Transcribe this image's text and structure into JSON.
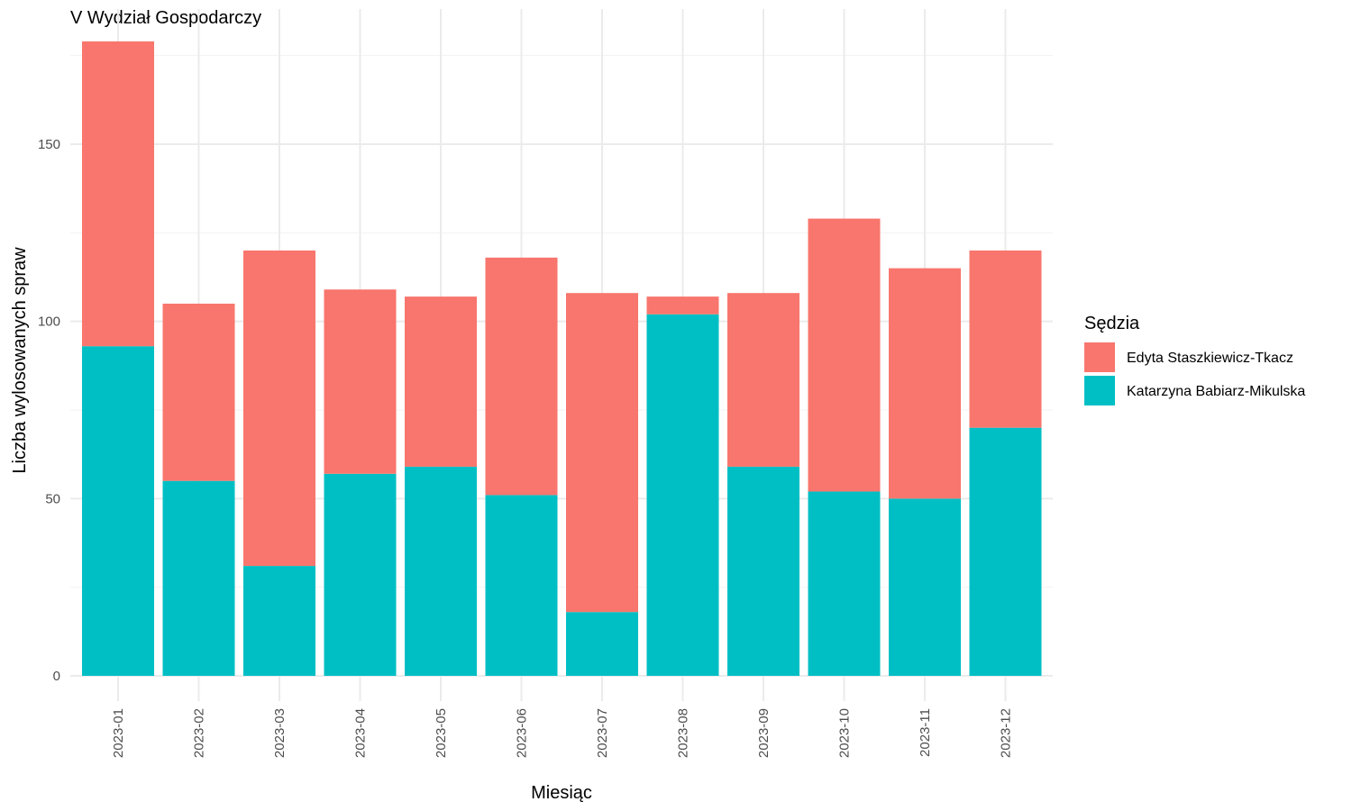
{
  "chart_data": {
    "type": "bar",
    "stacked": true,
    "title": "V Wydział Gospodarczy",
    "xlabel": "Miesiąc",
    "ylabel": "Liczba wylosowanych spraw",
    "ylim": [
      0,
      180
    ],
    "yticks": [
      0,
      50,
      100,
      150
    ],
    "grid": true,
    "legend_position": "right",
    "legend_title": "Sędzia",
    "categories": [
      "2023-01",
      "2023-02",
      "2023-03",
      "2023-04",
      "2023-05",
      "2023-06",
      "2023-07",
      "2023-08",
      "2023-09",
      "2023-10",
      "2023-11",
      "2023-12"
    ],
    "series": [
      {
        "name": "Katarzyna Babiarz-Mikulska",
        "color": "#00BFC4",
        "values": [
          93,
          55,
          31,
          57,
          59,
          51,
          18,
          102,
          59,
          52,
          50,
          70
        ]
      },
      {
        "name": "Edyta Staszkiewicz-Tkacz",
        "color": "#F8766D",
        "values": [
          86,
          50,
          89,
          52,
          48,
          67,
          90,
          5,
          49,
          77,
          65,
          50
        ]
      }
    ],
    "legend_order": [
      1,
      0
    ]
  }
}
